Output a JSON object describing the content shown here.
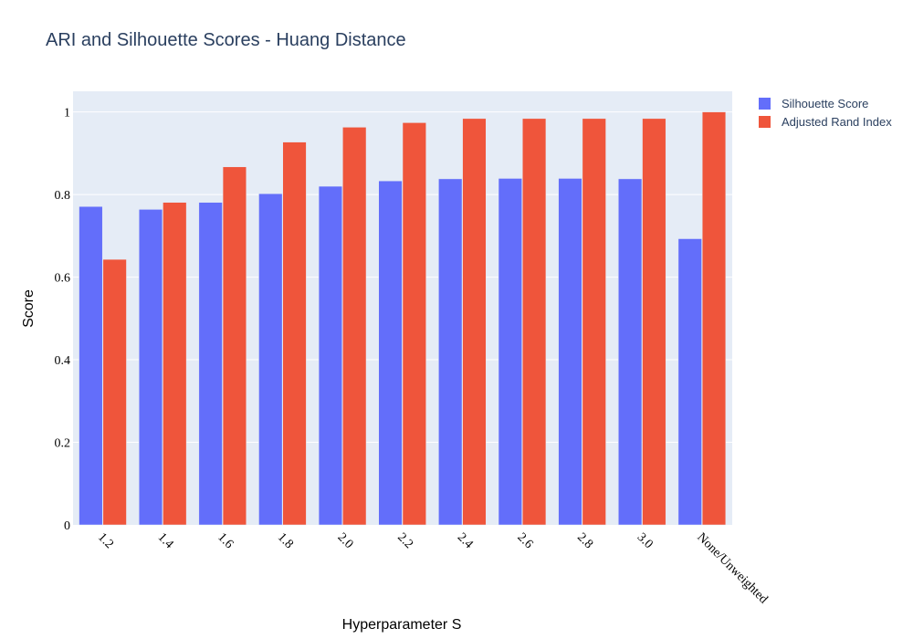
{
  "chart_data": {
    "type": "bar",
    "title": "ARI and Silhouette Scores - Huang Distance",
    "xlabel": "Hyperparameter S",
    "ylabel": "Score",
    "ylim": [
      0,
      1.05
    ],
    "yticks": [
      0,
      0.2,
      0.4,
      0.6,
      0.8,
      1
    ],
    "ytick_labels": [
      "0",
      "0.2",
      "0.4",
      "0.6",
      "0.8",
      "1"
    ],
    "grid": true,
    "legend_position": "top-right",
    "categories": [
      "1.2",
      "1.4",
      "1.6",
      "1.8",
      "2.0",
      "2.2",
      "2.4",
      "2.6",
      "2.8",
      "3.0",
      "None/Unweighted"
    ],
    "series": [
      {
        "name": "Silhouette Score",
        "color": "#636efa",
        "values": [
          0.771,
          0.764,
          0.781,
          0.802,
          0.82,
          0.833,
          0.838,
          0.839,
          0.839,
          0.838,
          0.693
        ]
      },
      {
        "name": "Adjusted Rand Index",
        "color": "#ef553b",
        "values": [
          0.643,
          0.781,
          0.867,
          0.927,
          0.963,
          0.974,
          0.984,
          0.984,
          0.984,
          0.984,
          1.0
        ]
      }
    ]
  }
}
